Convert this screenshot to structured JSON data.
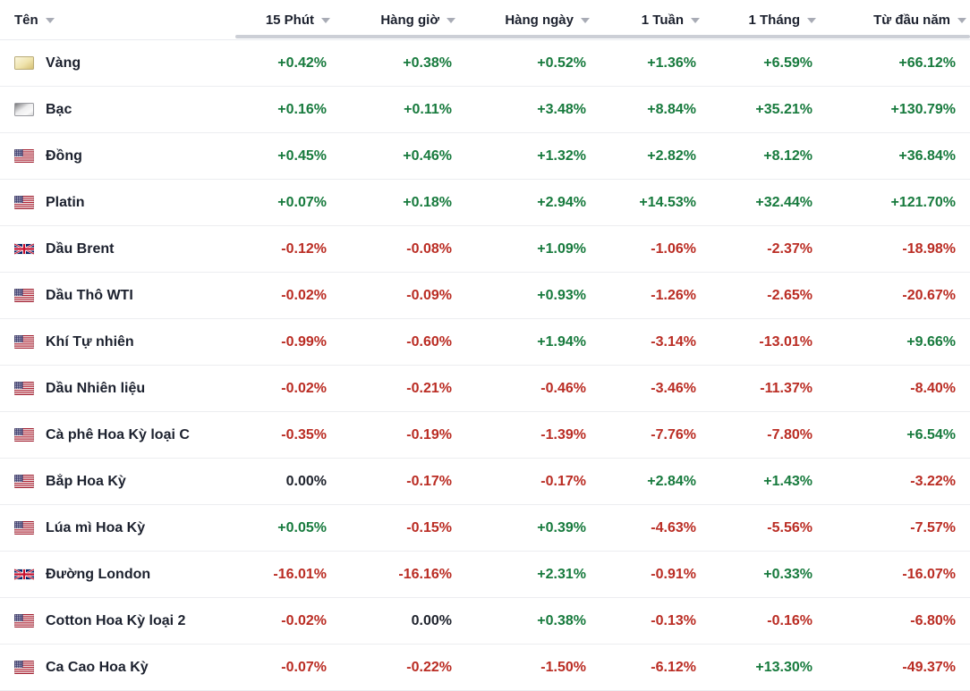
{
  "colors": {
    "positive": "#177a3d",
    "negative": "#ba2c23",
    "neutral": "#20242e"
  },
  "header": {
    "name_column": {
      "label": "Tên"
    },
    "value_columns": [
      {
        "label": "15 Phút"
      },
      {
        "label": "Hàng giờ"
      },
      {
        "label": "Hàng ngày"
      },
      {
        "label": "1 Tuần"
      },
      {
        "label": "1 Tháng"
      },
      {
        "label": "Từ đầu năm"
      }
    ]
  },
  "rows": [
    {
      "name": "Vàng",
      "icon": "gold-icon",
      "values": [
        "+0.42%",
        "+0.38%",
        "+0.52%",
        "+1.36%",
        "+6.59%",
        "+66.12%"
      ]
    },
    {
      "name": "Bạc",
      "icon": "silver-icon",
      "values": [
        "+0.16%",
        "+0.11%",
        "+3.48%",
        "+8.84%",
        "+35.21%",
        "+130.79%"
      ]
    },
    {
      "name": "Đồng",
      "icon": "us-flag-icon",
      "values": [
        "+0.45%",
        "+0.46%",
        "+1.32%",
        "+2.82%",
        "+8.12%",
        "+36.84%"
      ]
    },
    {
      "name": "Platin",
      "icon": "us-flag-icon",
      "values": [
        "+0.07%",
        "+0.18%",
        "+2.94%",
        "+14.53%",
        "+32.44%",
        "+121.70%"
      ]
    },
    {
      "name": "Dầu Brent",
      "icon": "uk-flag-icon",
      "values": [
        "-0.12%",
        "-0.08%",
        "+1.09%",
        "-1.06%",
        "-2.37%",
        "-18.98%"
      ]
    },
    {
      "name": "Dầu Thô WTI",
      "icon": "us-flag-icon",
      "values": [
        "-0.02%",
        "-0.09%",
        "+0.93%",
        "-1.26%",
        "-2.65%",
        "-20.67%"
      ]
    },
    {
      "name": "Khí Tự nhiên",
      "icon": "us-flag-icon",
      "values": [
        "-0.99%",
        "-0.60%",
        "+1.94%",
        "-3.14%",
        "-13.01%",
        "+9.66%"
      ]
    },
    {
      "name": "Dầu Nhiên liệu",
      "icon": "us-flag-icon",
      "values": [
        "-0.02%",
        "-0.21%",
        "-0.46%",
        "-3.46%",
        "-11.37%",
        "-8.40%"
      ]
    },
    {
      "name": "Cà phê Hoa Kỳ loại C",
      "icon": "us-flag-icon",
      "values": [
        "-0.35%",
        "-0.19%",
        "-1.39%",
        "-7.76%",
        "-7.80%",
        "+6.54%"
      ]
    },
    {
      "name": "Bắp Hoa Kỳ",
      "icon": "us-flag-icon",
      "values": [
        "0.00%",
        "-0.17%",
        "-0.17%",
        "+2.84%",
        "+1.43%",
        "-3.22%"
      ]
    },
    {
      "name": "Lúa mì Hoa Kỳ",
      "icon": "us-flag-icon",
      "values": [
        "+0.05%",
        "-0.15%",
        "+0.39%",
        "-4.63%",
        "-5.56%",
        "-7.57%"
      ]
    },
    {
      "name": "Đường London",
      "icon": "uk-flag-icon",
      "values": [
        "-16.01%",
        "-16.16%",
        "+2.31%",
        "-0.91%",
        "+0.33%",
        "-16.07%"
      ]
    },
    {
      "name": "Cotton Hoa Kỳ loại 2",
      "icon": "us-flag-icon",
      "values": [
        "-0.02%",
        "0.00%",
        "+0.38%",
        "-0.13%",
        "-0.16%",
        "-6.80%"
      ]
    },
    {
      "name": "Ca Cao Hoa Kỳ",
      "icon": "us-flag-icon",
      "values": [
        "-0.07%",
        "-0.22%",
        "-1.50%",
        "-6.12%",
        "+13.30%",
        "-49.37%"
      ]
    }
  ]
}
